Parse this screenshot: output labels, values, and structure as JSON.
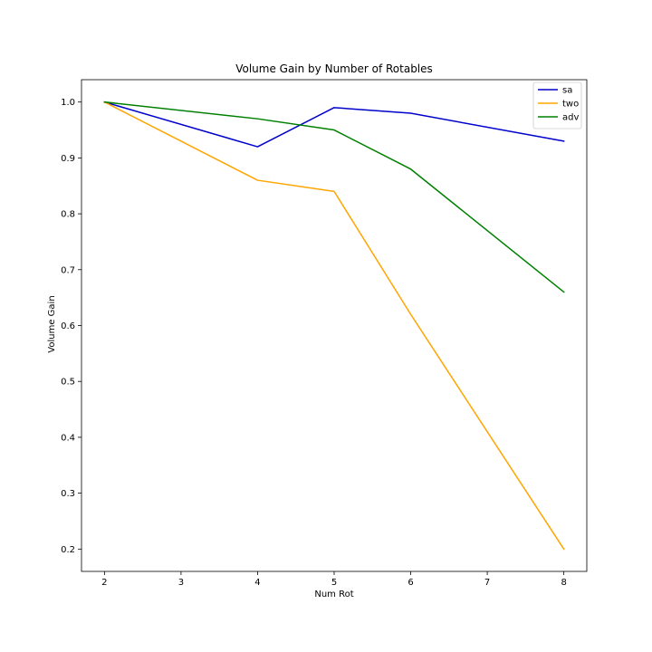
{
  "chart_data": {
    "type": "line",
    "title": "Volume Gain by Number of Rotables",
    "xlabel": "Num Rot",
    "ylabel": "Volume Gain",
    "x": [
      2,
      4,
      5,
      6,
      8
    ],
    "xlim": [
      1.7,
      8.3
    ],
    "ylim": [
      0.16,
      1.04
    ],
    "x_ticks": [
      2,
      3,
      4,
      5,
      6,
      7,
      8
    ],
    "y_ticks": [
      0.2,
      0.3,
      0.4,
      0.5,
      0.6,
      0.7,
      0.8,
      0.9,
      1.0
    ],
    "x_tick_labels": [
      "2",
      "3",
      "4",
      "5",
      "6",
      "7",
      "8"
    ],
    "y_tick_labels": [
      "0.2",
      "0.3",
      "0.4",
      "0.5",
      "0.6",
      "0.7",
      "0.8",
      "0.9",
      "1.0"
    ],
    "grid": false,
    "legend_position": "top-right",
    "series": [
      {
        "name": "sa",
        "color": "#0000cc",
        "values": [
          1.0,
          0.92,
          0.99,
          0.98,
          0.93
        ]
      },
      {
        "name": "two",
        "color": "#ffa500",
        "values": [
          1.0,
          0.86,
          0.84,
          0.62,
          0.2
        ]
      },
      {
        "name": "adv",
        "color": "#008000",
        "values": [
          1.0,
          0.97,
          0.95,
          0.88,
          0.66
        ]
      }
    ]
  }
}
